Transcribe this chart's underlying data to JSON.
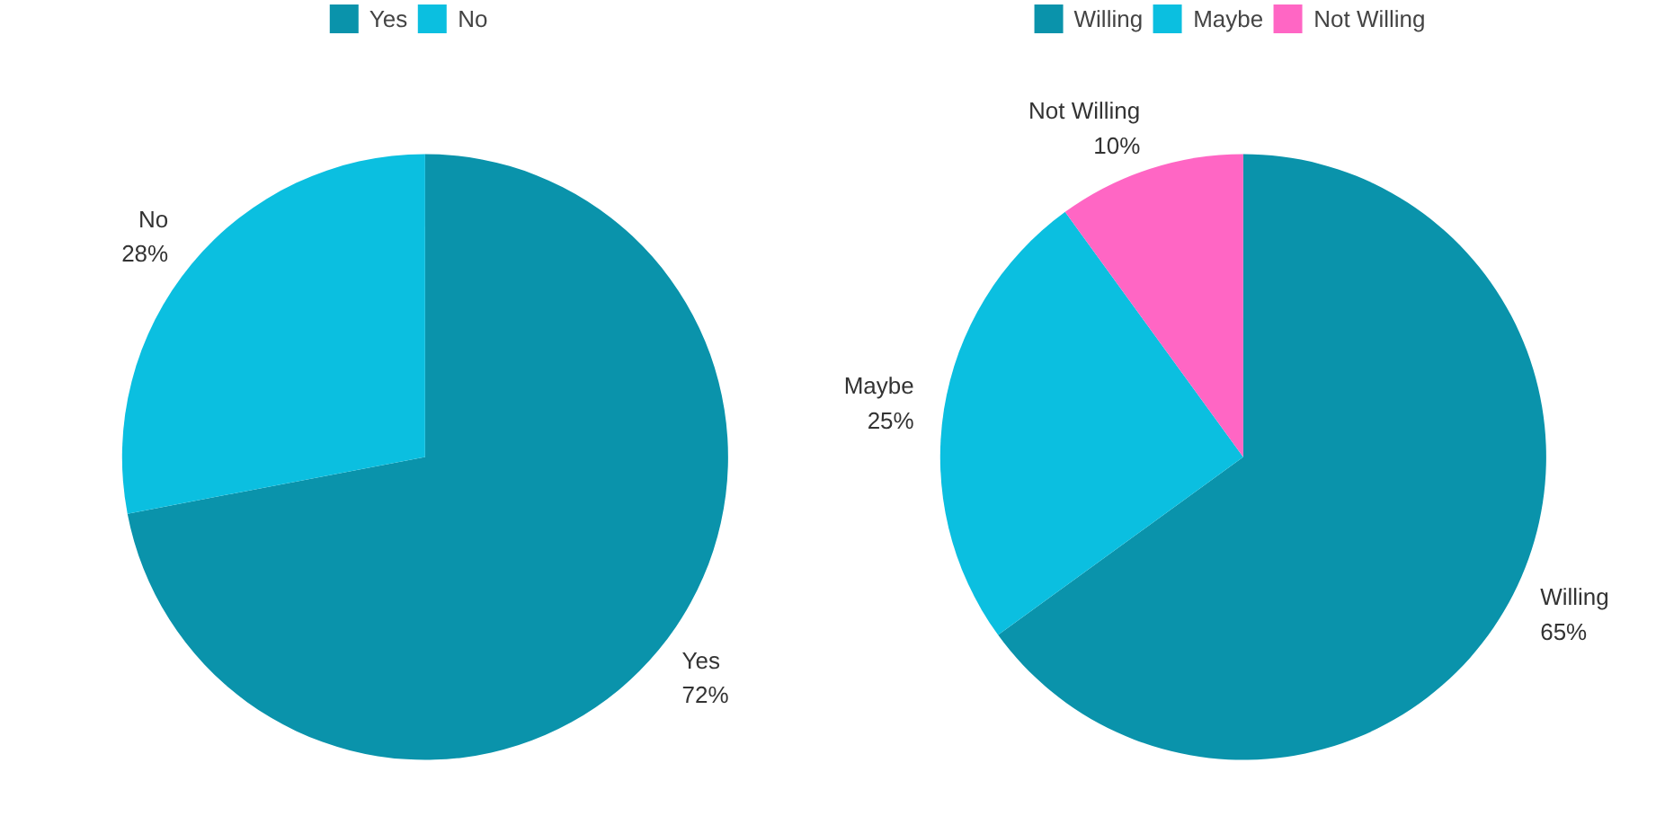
{
  "chart_data": [
    {
      "type": "pie",
      "categories": [
        "Yes",
        "No"
      ],
      "values": [
        72,
        28
      ],
      "colors": [
        "#0a93ab",
        "#0bbfe0"
      ],
      "value_labels": [
        "72%",
        "28%"
      ],
      "legend": "top"
    },
    {
      "type": "pie",
      "categories": [
        "Willing",
        "Maybe",
        "Not Willing"
      ],
      "values": [
        65,
        25,
        10
      ],
      "colors": [
        "#0a93ab",
        "#0bbfe0",
        "#ff66c4"
      ],
      "value_labels": [
        "65%",
        "25%",
        "10%"
      ],
      "legend": "top"
    }
  ]
}
